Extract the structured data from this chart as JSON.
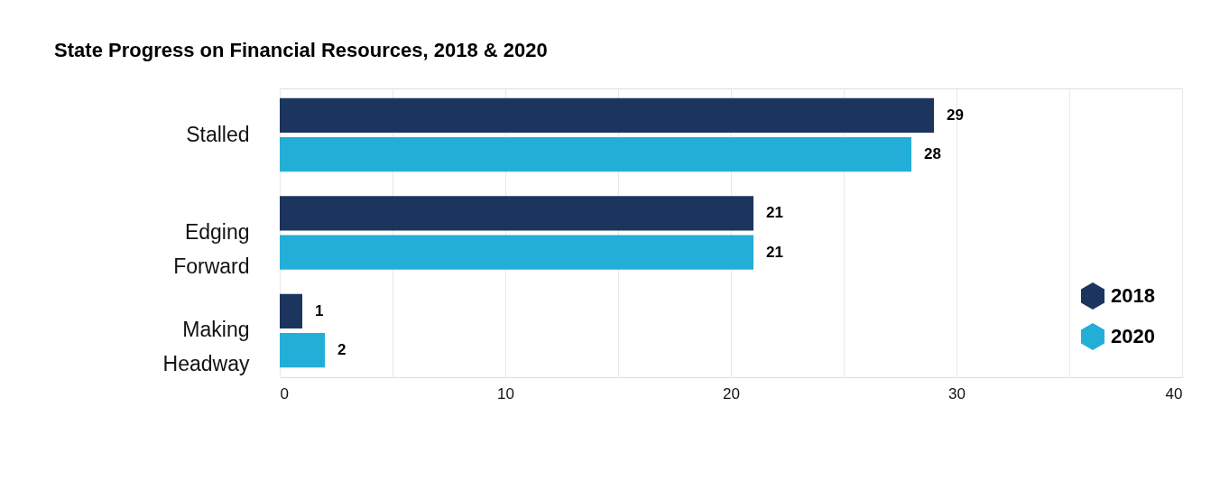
{
  "chart_data": {
    "type": "bar",
    "orientation": "horizontal",
    "title": "State Progress on Financial Resources, 2018 & 2020",
    "categories": [
      "Stalled",
      "Edging Forward",
      "Making Headway"
    ],
    "series": [
      {
        "name": "2018",
        "color": "#1c355e",
        "values": [
          29,
          21,
          1
        ]
      },
      {
        "name": "2020",
        "color": "#23aed8",
        "values": [
          28,
          21,
          2
        ]
      }
    ],
    "xlim": [
      0,
      40
    ],
    "xticks": [
      0,
      {
        "value": 5,
        "label": null
      },
      10,
      {
        "value": 15,
        "label": null
      },
      20,
      {
        "value": 25,
        "label": null
      },
      30,
      {
        "value": 35,
        "label": null
      },
      40
    ],
    "grid": "x",
    "legend": "bottom right",
    "data_labels": true
  }
}
